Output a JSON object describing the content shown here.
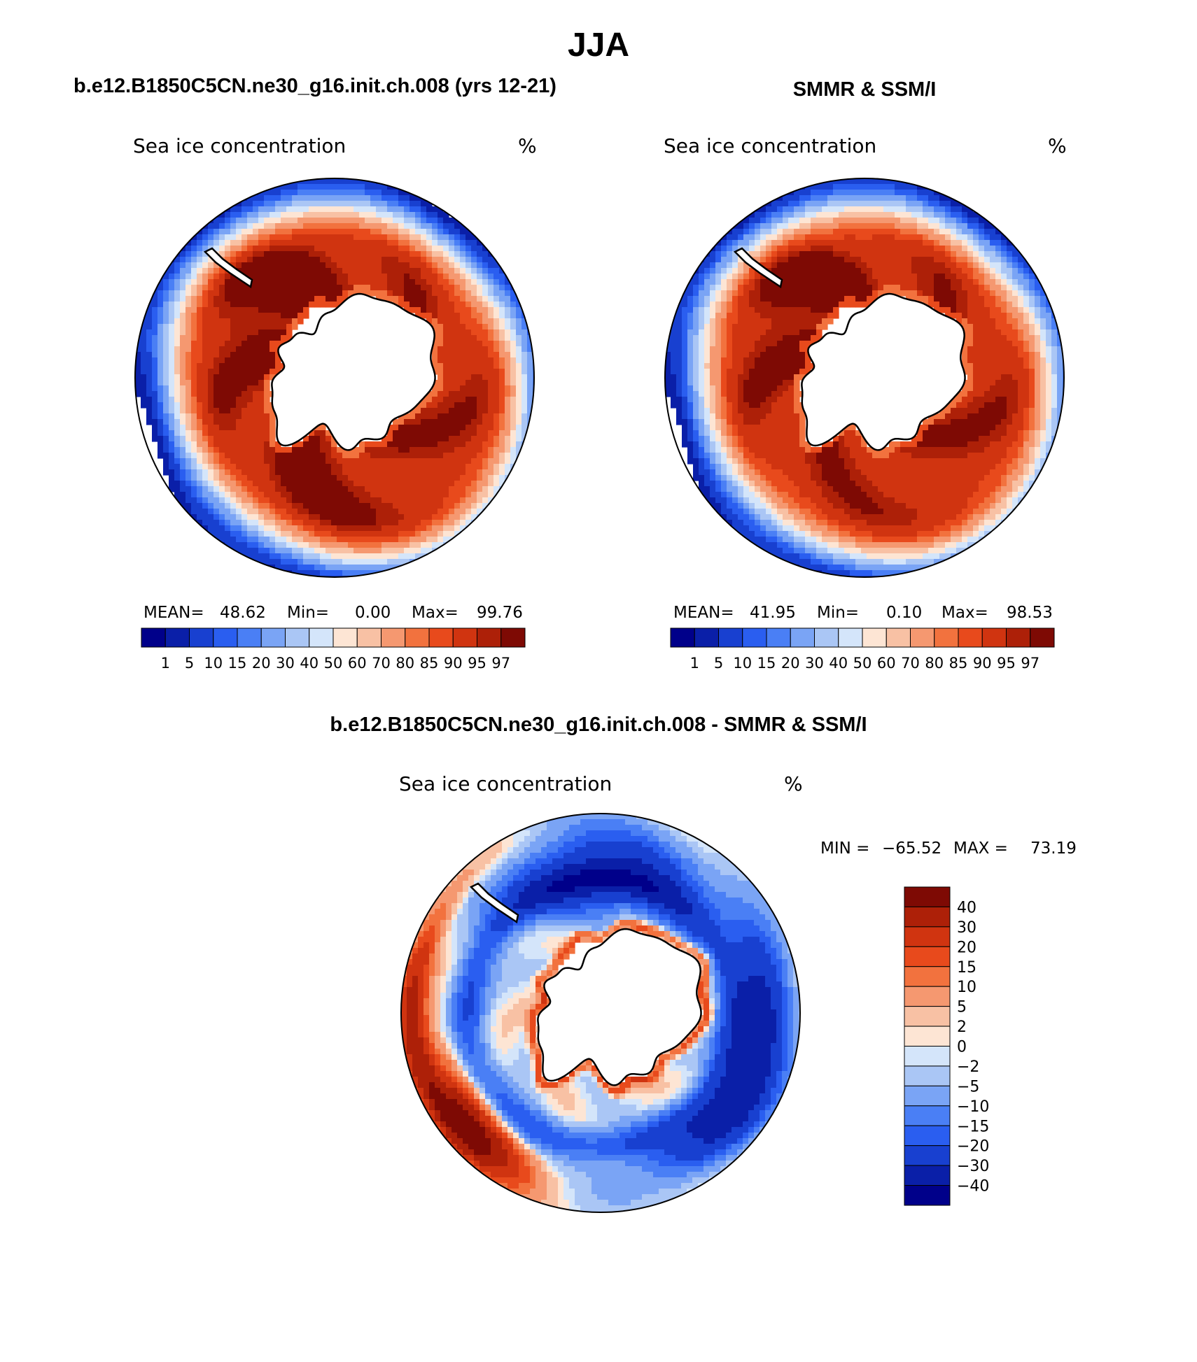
{
  "page_title": "JJA",
  "chart_data": [
    {
      "type": "heatmap",
      "panel": "model",
      "title": "b.e12.B1850C5CN.ne30_g16.init.ch.008 (yrs 12-21)",
      "left_string": "Sea ice concentration",
      "right_string": "%",
      "stats": {
        "mean_label": "MEAN=",
        "mean": "48.62",
        "min_label": "Min=",
        "min": "0.00",
        "max_label": "Max=",
        "max": "99.76"
      },
      "colorbar": {
        "orientation": "horizontal",
        "levels": [
          "1",
          "5",
          "10",
          "15",
          "20",
          "30",
          "40",
          "50",
          "60",
          "70",
          "80",
          "85",
          "90",
          "95",
          "97"
        ],
        "colors": [
          "#00008a",
          "#0a1fa8",
          "#1840d0",
          "#2a5ef0",
          "#4a7ff5",
          "#7aa4f5",
          "#aac6f5",
          "#d4e5fa",
          "#fde5d4",
          "#f8c1a4",
          "#f59870",
          "#f2723e",
          "#e84a1c",
          "#d03410",
          "#ad2008",
          "#7e0a04"
        ]
      },
      "field": {
        "projection": "south-polar-stereographic",
        "ice_edge_strength": 1.0,
        "wedge_phase_deg": 120,
        "weddell_max": 99.76,
        "ross_max": 96
      }
    },
    {
      "type": "heatmap",
      "panel": "observations",
      "title": "SMMR & SSM/I",
      "left_string": "Sea ice concentration",
      "right_string": "%",
      "stats": {
        "mean_label": "MEAN=",
        "mean": "41.95",
        "min_label": "Min=",
        "min": "0.10",
        "max_label": "Max=",
        "max": "98.53"
      },
      "colorbar": {
        "orientation": "horizontal",
        "levels": [
          "1",
          "5",
          "10",
          "15",
          "20",
          "30",
          "40",
          "50",
          "60",
          "70",
          "80",
          "85",
          "90",
          "95",
          "97"
        ],
        "colors": [
          "#00008a",
          "#0a1fa8",
          "#1840d0",
          "#2a5ef0",
          "#4a7ff5",
          "#7aa4f5",
          "#aac6f5",
          "#d4e5fa",
          "#fde5d4",
          "#f8c1a4",
          "#f59870",
          "#f2723e",
          "#e84a1c",
          "#d03410",
          "#ad2008",
          "#7e0a04"
        ]
      },
      "field": {
        "projection": "south-polar-stereographic",
        "ice_edge_strength": 0.8,
        "wedge_phase_deg": 120,
        "weddell_max": 98.53,
        "ross_max": 90
      }
    },
    {
      "type": "heatmap",
      "panel": "difference",
      "title": "b.e12.B1850C5CN.ne30_g16.init.ch.008 - SMMR & SSM/I",
      "left_string": "Sea ice concentration",
      "right_string": "%",
      "stats": {
        "min_label": "MIN =",
        "min": "−65.52",
        "max_label": "MAX =",
        "max": "73.19"
      },
      "colorbar": {
        "orientation": "vertical",
        "levels": [
          "40",
          "30",
          "20",
          "15",
          "10",
          "5",
          "2",
          "0",
          "−2",
          "−5",
          "−10",
          "−15",
          "−20",
          "−30",
          "−40"
        ],
        "colors": [
          "#7e0a04",
          "#ad2008",
          "#d03410",
          "#e84a1c",
          "#f2723e",
          "#f59870",
          "#f8c1a4",
          "#fde5d4",
          "#d4e5fa",
          "#aac6f5",
          "#7aa4f5",
          "#4a7ff5",
          "#2a5ef0",
          "#1840d0",
          "#0a1fa8",
          "#00008a"
        ]
      },
      "field": {
        "projection": "south-polar-stereographic",
        "min": -65.52,
        "max": 73.19
      }
    }
  ]
}
